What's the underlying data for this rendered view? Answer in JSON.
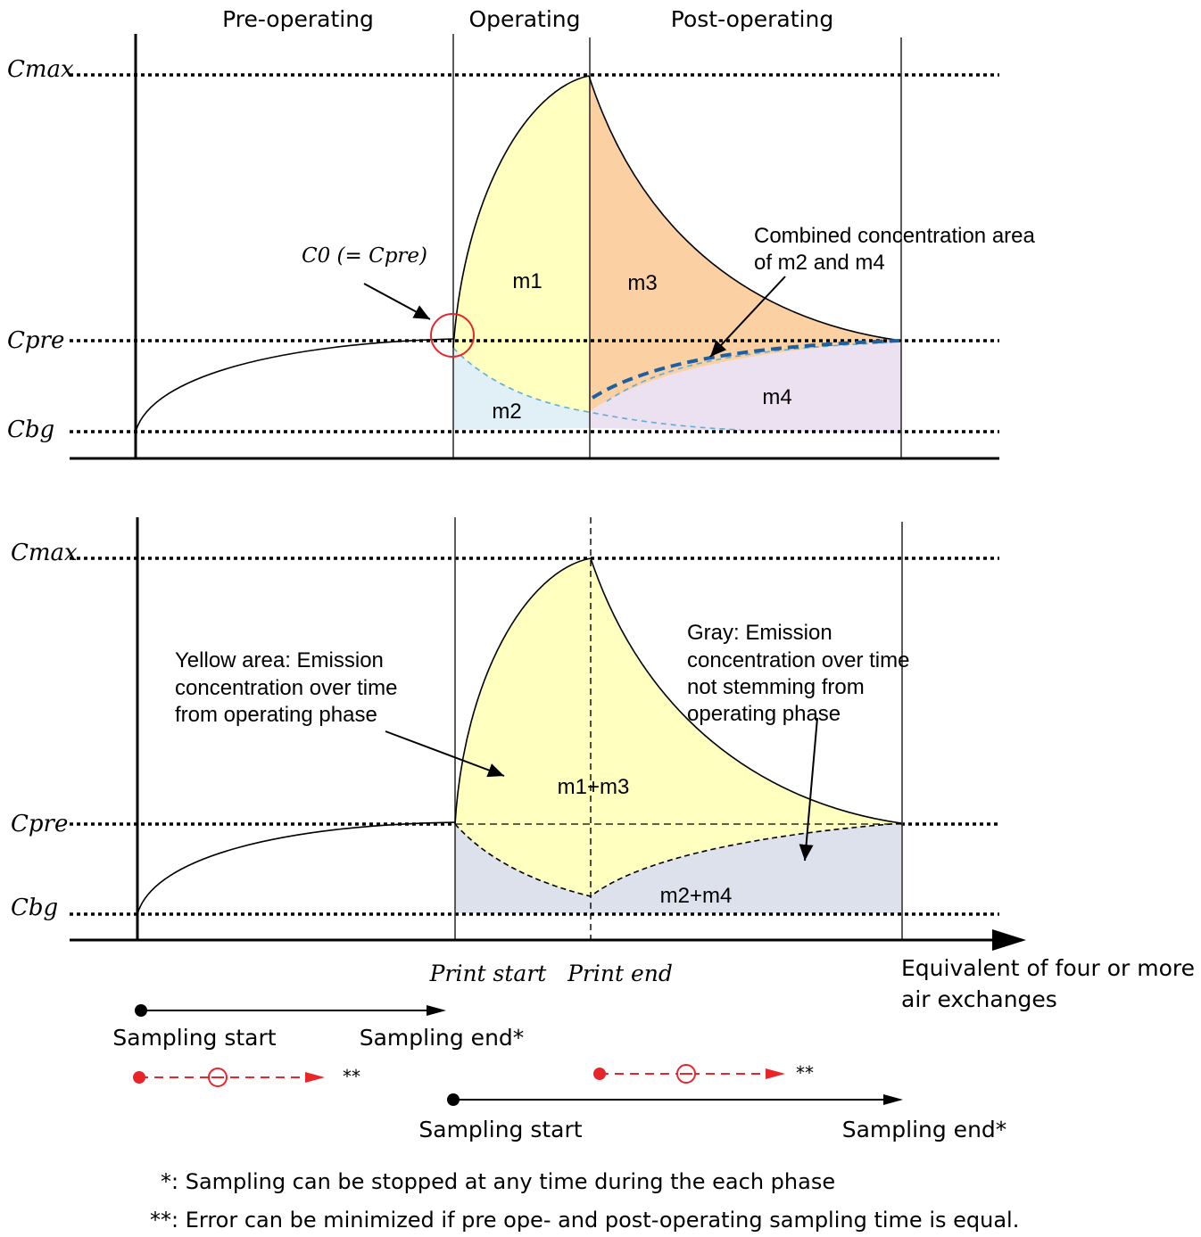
{
  "phases": {
    "pre": "Pre-operating",
    "op": "Operating",
    "post": "Post-operating"
  },
  "axis_labels": {
    "cmax": "Cmax",
    "cpre": "Cpre",
    "cbg": "Cbg",
    "c0_note": "C0 (= Cpre)"
  },
  "top_panel": {
    "m1": "m1",
    "m2": "m2",
    "m3": "m3",
    "m4": "m4",
    "combined_note_line1": "Combined concentration  area",
    "combined_note_line2": "of m2 and m4"
  },
  "bottom_panel": {
    "yellow_line1": "Yellow area: Emission",
    "yellow_line2": "concentration over time",
    "yellow_line3": "from operating phase",
    "gray_line1": "Gray: Emission",
    "gray_line2": "concentration over time",
    "gray_line3": "not stemming from",
    "gray_line4": "operating phase",
    "m1m3": "m1+m3",
    "m2m4": "m2+m4"
  },
  "x_axis": {
    "print_start": "Print start",
    "print_end": "Print end",
    "end_line1": "Equivalent of four or more",
    "end_line2": "air exchanges"
  },
  "sampling": {
    "start_1": "Sampling start",
    "end_1": "Sampling end*",
    "start_2": "Sampling start",
    "end_2": "Sampling end*",
    "stars_1": "**",
    "stars_2": "**"
  },
  "footnotes": {
    "f1": "*: Sampling can be stopped at any time during the each phase",
    "f2": "**: Error can be minimized if pre ope- and post-operating sampling time is equal."
  },
  "colors": {
    "yellow": "#ffffc0",
    "orange": "#fbd0a3",
    "light_blue": "#e1f0f7",
    "lavender": "#ece1f0",
    "gray_fill": "#dde1ec",
    "red": "#e8262a",
    "blue_dash": "#1e5fa0",
    "light_blue_dash": "#5aaed8"
  }
}
